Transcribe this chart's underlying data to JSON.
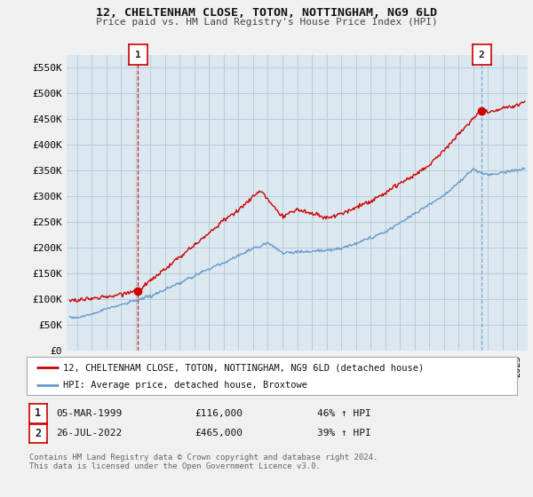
{
  "title": "12, CHELTENHAM CLOSE, TOTON, NOTTINGHAM, NG9 6LD",
  "subtitle": "Price paid vs. HM Land Registry's House Price Index (HPI)",
  "legend_line1": "12, CHELTENHAM CLOSE, TOTON, NOTTINGHAM, NG9 6LD (detached house)",
  "legend_line2": "HPI: Average price, detached house, Broxtowe",
  "annotation1_date": "05-MAR-1999",
  "annotation1_price": "£116,000",
  "annotation1_hpi": "46% ↑ HPI",
  "annotation2_date": "26-JUL-2022",
  "annotation2_price": "£465,000",
  "annotation2_hpi": "39% ↑ HPI",
  "footer": "Contains HM Land Registry data © Crown copyright and database right 2024.\nThis data is licensed under the Open Government Licence v3.0.",
  "price_color": "#cc0000",
  "hpi_color": "#6699cc",
  "background_color": "#f0f0f0",
  "plot_bg_color": "#dce8f0",
  "grid_color": "#b8ccd8",
  "ylim": [
    0,
    575000
  ],
  "yticks": [
    0,
    50000,
    100000,
    150000,
    200000,
    250000,
    300000,
    350000,
    400000,
    450000,
    500000,
    550000
  ],
  "sale1_year": 1999.17,
  "sale1_price": 116000,
  "sale2_year": 2022.56,
  "sale2_price": 465000
}
